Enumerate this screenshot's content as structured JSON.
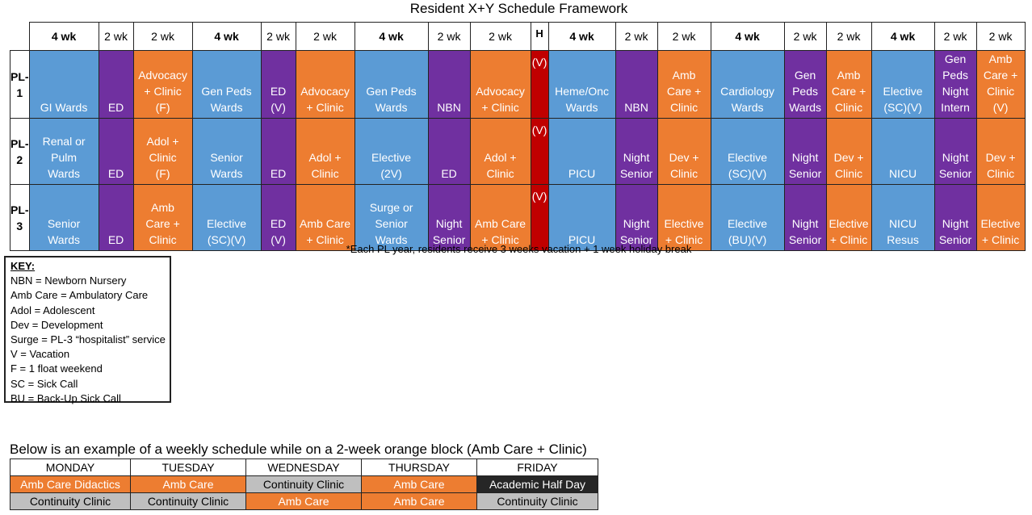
{
  "title": "Resident X+Y Schedule Framework",
  "colors": {
    "blue": "#5B9BD5",
    "purple": "#7030A0",
    "orange": "#ED7D31",
    "red": "#C00000",
    "gray": "#BFBFBF",
    "black": "#262626"
  },
  "header": [
    "4 wk",
    "2 wk",
    "2 wk",
    "4 wk",
    "2 wk",
    "2 wk",
    "4 wk",
    "2 wk",
    "2 wk",
    "H",
    "4 wk",
    "2 wk",
    "2 wk",
    "4 wk",
    "2 wk",
    "2 wk",
    "4 wk",
    "2 wk",
    "2 wk"
  ],
  "rows": [
    {
      "label": [
        "PL-",
        "1"
      ],
      "cells": [
        [
          "GI Wards"
        ],
        [
          "ED"
        ],
        [
          "Advocacy",
          "+ Clinic",
          "(F)"
        ],
        [
          "Gen Peds",
          "Wards"
        ],
        [
          "ED",
          "(V)"
        ],
        [
          "Advocacy",
          "+ Clinic"
        ],
        [
          "Gen Peds",
          "Wards"
        ],
        [
          "NBN"
        ],
        [
          "Advocacy",
          "+ Clinic"
        ],
        [
          "(V)"
        ],
        [
          "Heme/Onc",
          "Wards"
        ],
        [
          "NBN"
        ],
        [
          "Amb",
          "Care +",
          "Clinic"
        ],
        [
          "Cardiology",
          "Wards"
        ],
        [
          "Gen",
          "Peds",
          "Wards"
        ],
        [
          "Amb",
          "Care +",
          "Clinic"
        ],
        [
          "Elective",
          "(SC)(V)"
        ],
        [
          "Gen",
          "Peds",
          "Night",
          "Intern"
        ],
        [
          "Amb",
          "Care +",
          "Clinic",
          "(V)"
        ]
      ]
    },
    {
      "label": [
        "PL-",
        "2"
      ],
      "cells": [
        [
          "Renal or",
          "Pulm",
          "Wards"
        ],
        [
          "ED"
        ],
        [
          "Adol +",
          "Clinic",
          "(F)"
        ],
        [
          "Senior",
          "Wards"
        ],
        [
          "ED"
        ],
        [
          "Adol +",
          "Clinic"
        ],
        [
          "Elective",
          "(2V)"
        ],
        [
          "ED"
        ],
        [
          "Adol +",
          "Clinic"
        ],
        [
          "(V)"
        ],
        [
          "PICU"
        ],
        [
          "Night",
          "Senior"
        ],
        [
          "Dev +",
          "Clinic"
        ],
        [
          "Elective",
          "(SC)(V)"
        ],
        [
          "Night",
          "Senior"
        ],
        [
          "Dev +",
          "Clinic"
        ],
        [
          "NICU"
        ],
        [
          "Night",
          "Senior"
        ],
        [
          "Dev +",
          "Clinic"
        ]
      ]
    },
    {
      "label": [
        "PL-",
        "3"
      ],
      "cells": [
        [
          "Senior",
          "Wards"
        ],
        [
          "ED"
        ],
        [
          "Amb",
          "Care +",
          "Clinic"
        ],
        [
          "Elective",
          "(SC)(V)"
        ],
        [
          "ED",
          "(V)"
        ],
        [
          "Amb Care",
          "+ Clinic"
        ],
        [
          "Surge or",
          "Senior",
          "Wards"
        ],
        [
          "Night",
          "Senior"
        ],
        [
          "Amb Care",
          "+ Clinic"
        ],
        [
          "(V)"
        ],
        [
          "PICU"
        ],
        [
          "Night",
          "Senior"
        ],
        [
          "Elective",
          "+ Clinic"
        ],
        [
          "Elective",
          "(BU)(V)"
        ],
        [
          "Night",
          "Senior"
        ],
        [
          "Elective",
          "+ Clinic"
        ],
        [
          "NICU",
          "Resus"
        ],
        [
          "Night",
          "Senior"
        ],
        [
          "Elective",
          "+ Clinic"
        ]
      ]
    }
  ],
  "note": "*Each PL year, residents receive 3 weeks vacation + 1 week holiday break",
  "key": {
    "title": "KEY:",
    "items": [
      "NBN = Newborn Nursery",
      "Amb Care = Ambulatory Care",
      "Adol = Adolescent",
      "Dev = Development",
      "Surge = PL-3 “hospitalist” service",
      "V = Vacation",
      "F = 1 float weekend",
      "SC = Sick Call",
      "BU = Back-Up Sick Call"
    ]
  },
  "weekly": {
    "title": "Below is an example of a weekly schedule while on a 2-week orange block (Amb Care + Clinic)",
    "days": [
      "MONDAY",
      "TUESDAY",
      "WEDNESDAY",
      "THURSDAY",
      "FRIDAY"
    ],
    "rows": [
      [
        "Amb Care Didactics",
        "Amb Care",
        "Continuity Clinic",
        "Amb Care",
        "Academic Half Day"
      ],
      [
        "Continuity Clinic",
        "Continuity Clinic",
        "Amb Care",
        "Amb Care",
        "Continuity Clinic"
      ]
    ]
  }
}
